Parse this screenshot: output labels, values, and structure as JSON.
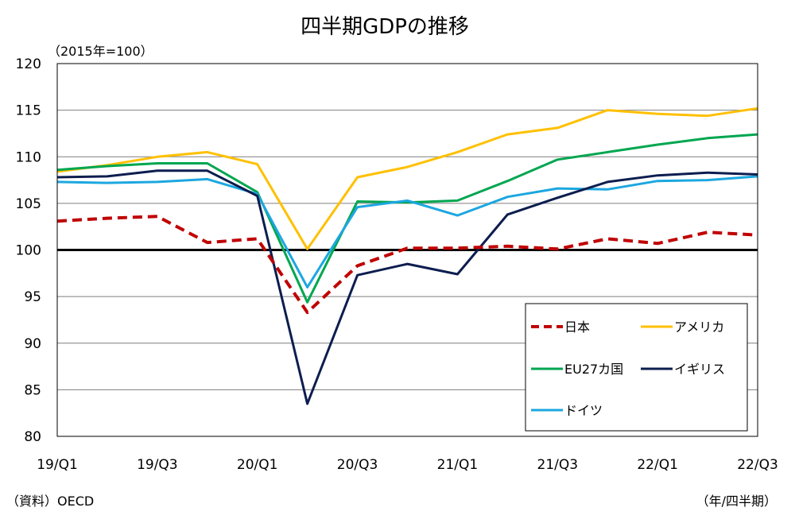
{
  "chart_data": {
    "type": "line",
    "title": "四半期GDPの推移",
    "ylabel": "（2015年=100）",
    "xlabel": "（年/四半期）",
    "source": "（資料）OECD",
    "ylim": [
      80,
      120
    ],
    "yticks": [
      80,
      85,
      90,
      95,
      100,
      105,
      110,
      115,
      120
    ],
    "x": [
      "19/Q1",
      "19/Q2",
      "19/Q3",
      "19/Q4",
      "20/Q1",
      "20/Q2",
      "20/Q3",
      "20/Q4",
      "21/Q1",
      "21/Q2",
      "21/Q3",
      "21/Q4",
      "22/Q1",
      "22/Q2",
      "22/Q3"
    ],
    "xtick_labels": [
      "19/Q1",
      "19/Q3",
      "20/Q1",
      "20/Q3",
      "21/Q1",
      "21/Q3",
      "22/Q1",
      "22/Q3"
    ],
    "grid": true,
    "reference_line": 100,
    "legend_position": "bottom-right",
    "series": [
      {
        "name": "日本",
        "color": "#c00000",
        "style": "dashed",
        "values": [
          103.1,
          103.4,
          103.6,
          100.8,
          101.2,
          93.3,
          98.3,
          100.2,
          100.2,
          100.4,
          100.1,
          101.2,
          100.7,
          101.9,
          101.6
        ]
      },
      {
        "name": "アメリカ",
        "color": "#ffc000",
        "style": "solid",
        "values": [
          108.4,
          109.1,
          110.0,
          110.5,
          109.2,
          100.1,
          107.8,
          108.9,
          110.5,
          112.4,
          113.1,
          115.0,
          114.6,
          114.4,
          115.2
        ]
      },
      {
        "name": "EU27カ国",
        "color": "#00a650",
        "style": "solid",
        "values": [
          108.6,
          109.0,
          109.3,
          109.3,
          106.2,
          94.4,
          105.2,
          105.1,
          105.3,
          107.4,
          109.7,
          110.5,
          111.3,
          112.0,
          112.4
        ]
      },
      {
        "name": "イギリス",
        "color": "#0c1d4f",
        "style": "solid",
        "values": [
          107.8,
          107.9,
          108.5,
          108.5,
          105.8,
          83.5,
          97.3,
          98.5,
          97.4,
          103.8,
          105.6,
          107.3,
          108.0,
          108.3,
          108.1
        ]
      },
      {
        "name": "ドイツ",
        "color": "#1ca7e0",
        "style": "solid",
        "values": [
          107.3,
          107.2,
          107.3,
          107.6,
          106.0,
          96.0,
          104.6,
          105.3,
          103.7,
          105.7,
          106.6,
          106.5,
          107.4,
          107.5,
          107.9
        ]
      }
    ]
  }
}
